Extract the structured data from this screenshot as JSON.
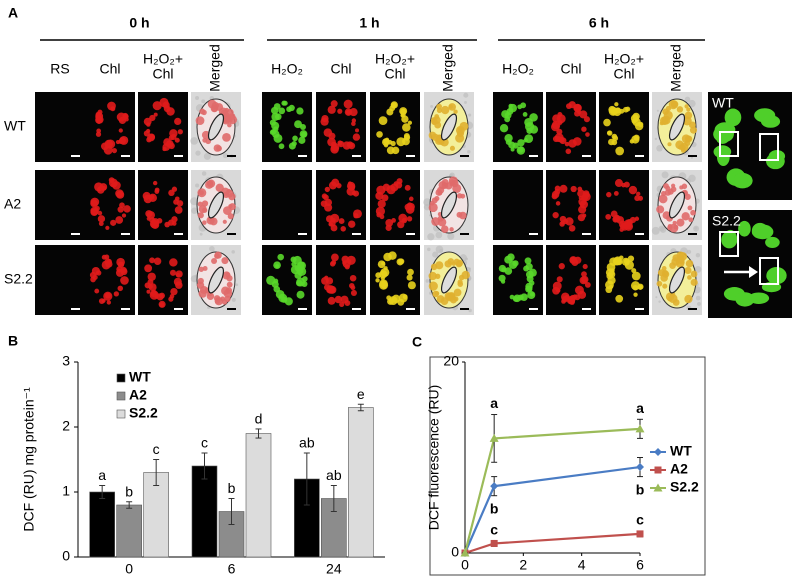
{
  "panel_a": {
    "label": "A",
    "groups": [
      {
        "title": "0 h",
        "columns": [
          [
            "RS"
          ],
          [
            "Chl"
          ],
          [
            "H₂O₂+",
            "Chl"
          ],
          [
            "Merged"
          ]
        ]
      },
      {
        "title": "1 h",
        "columns": [
          [
            "H₂O₂"
          ],
          [
            "Chl"
          ],
          [
            "H₂O₂+",
            "Chl"
          ],
          [
            "Merged"
          ]
        ]
      },
      {
        "title": "6 h",
        "columns": [
          [
            "H₂O₂"
          ],
          [
            "Chl"
          ],
          [
            "H₂O₂+",
            "Chl"
          ],
          [
            "Merged"
          ]
        ]
      }
    ],
    "rows": [
      "WT",
      "A2",
      "S2.2"
    ],
    "insets": [
      "WT",
      "S2.2"
    ]
  },
  "chart_data": [
    {
      "type": "bar",
      "panel_label": "B",
      "ylabel": "DCF (RU) mg protein⁻¹",
      "categories": [
        "0",
        "6",
        "24"
      ],
      "ylim": [
        0,
        3
      ],
      "yticks": [
        0,
        1,
        2,
        3
      ],
      "legend": "upper left",
      "series": [
        {
          "name": "WT",
          "color": "#000000",
          "values": [
            1.0,
            1.4,
            1.2
          ],
          "errors": [
            0.1,
            0.2,
            0.4
          ],
          "letters": [
            "a",
            "c",
            "ab"
          ]
        },
        {
          "name": "A2",
          "color": "#8c8c8c",
          "values": [
            0.8,
            0.7,
            0.9
          ],
          "errors": [
            0.05,
            0.2,
            0.2
          ],
          "letters": [
            "b",
            "b",
            "ab"
          ]
        },
        {
          "name": "S2.2",
          "color": "#dcdcdc",
          "values": [
            1.3,
            1.9,
            2.3
          ],
          "errors": [
            0.2,
            0.07,
            0.05
          ],
          "letters": [
            "c",
            "d",
            "e"
          ]
        }
      ]
    },
    {
      "type": "line",
      "panel_label": "C",
      "ylabel": "DCF fluorescence (RU)",
      "x": [
        0,
        1,
        6
      ],
      "xlim": [
        0,
        6
      ],
      "xticks": [
        0,
        2,
        4,
        6
      ],
      "ylim": [
        0,
        20
      ],
      "yticks": [
        0,
        20
      ],
      "legend": "right",
      "series": [
        {
          "name": "WT",
          "color": "#4a7cc4",
          "values": [
            0,
            7,
            9
          ],
          "errors": [
            0,
            1,
            1
          ],
          "letters": [
            null,
            "b",
            "b"
          ]
        },
        {
          "name": "A2",
          "color": "#c0504d",
          "values": [
            0,
            1,
            2
          ],
          "errors": [
            0,
            0.3,
            0.3
          ],
          "letters": [
            null,
            "c",
            "c"
          ]
        },
        {
          "name": "S2.2",
          "color": "#9bbb59",
          "values": [
            0,
            12,
            13
          ],
          "errors": [
            0,
            2.5,
            1
          ],
          "letters": [
            null,
            "a",
            "a"
          ]
        }
      ]
    }
  ]
}
